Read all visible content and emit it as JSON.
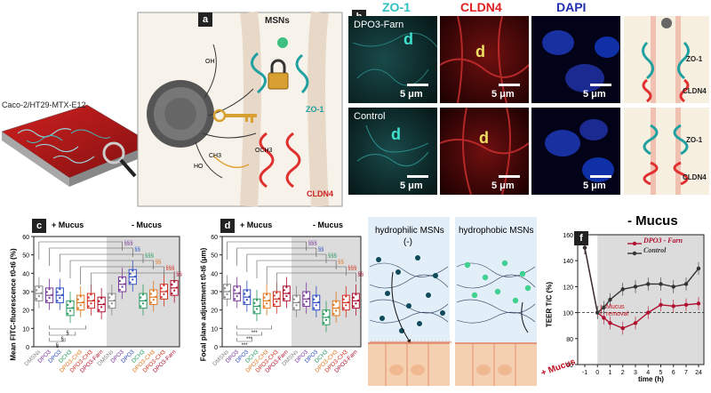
{
  "panel_a": {
    "letter": "a",
    "sample_label": "Caco-2/HT29-MTX-E12",
    "msns_label": "MSNs",
    "zo1_label": "ZO-1",
    "cldn4_label": "CLDN4",
    "chem_labels": [
      "OH",
      "HO",
      "OCH3",
      "CH3"
    ]
  },
  "panel_b": {
    "letter": "b",
    "headers": {
      "zo1": "ZO-1",
      "cldn4": "CLDN4",
      "dapi": "DAPI"
    },
    "row1_label": "DPO3-Farn",
    "row2_label": "Control",
    "scale": "5 μm",
    "d_label": "d",
    "schematic_labels": {
      "zo1": "ZO-1",
      "cldn4": "CLDN4"
    }
  },
  "panel_c": {
    "letter": "c",
    "plus_mucus": "+ Mucus",
    "minus_mucus": "- Mucus",
    "ylabel": "Mean FITC-fluorescence t0-t6 (%)",
    "categories": [
      "DMSNs",
      "DPO3",
      "DPO3",
      "DCH3",
      "DPO3-CH3",
      "DPO3-CH3",
      "DPO3-Farn"
    ],
    "sig_labels": [
      "§§§",
      "§§",
      "§",
      "***",
      "###",
      "**",
      "*"
    ]
  },
  "panel_d": {
    "letter": "d",
    "plus_mucus": "+ Mucus",
    "minus_mucus": "- Mucus",
    "ylabel": "Focal plane adjustment t0-t6 (μm)",
    "sig_labels": [
      "§§§",
      "§§",
      "***",
      "**",
      "*"
    ]
  },
  "panel_e": {
    "letter": "e",
    "left_title": "hydrophilic MSNs",
    "left_sub": "(-)",
    "right_title": "hydrophobic MSNs"
  },
  "panel_f": {
    "letter": "f",
    "title": "- Mucus",
    "legend": [
      "DPO3 - Farn",
      "Control"
    ],
    "ylabel": "TEER T/C (%)",
    "xlabel": "time (h)",
    "annotation": "Mucus removal",
    "plus_mucus": "+ Mucus",
    "colors": {
      "farn": "#b01030",
      "control": "#333333"
    }
  },
  "chart_data": [
    {
      "type": "box",
      "title": "",
      "ylabel": "Mean FITC-fluorescence t0-t6 (%)",
      "ylim": [
        0,
        60
      ],
      "yticks": [
        0,
        10,
        20,
        30,
        40,
        50,
        60
      ],
      "groups": [
        "+ Mucus",
        "- Mucus"
      ],
      "categories": [
        "DMSNs",
        "DPO3",
        "DPO3",
        "DCH3",
        "DPO3-CH3",
        "DPO3-CH3",
        "DPO3-Farn"
      ],
      "colors": [
        "#888888",
        "#7a3a9a",
        "#3050c0",
        "#2a9a60",
        "#e07820",
        "#d03020",
        "#b01030"
      ],
      "series": [
        {
          "name": "+ Mucus",
          "medians": [
            29,
            28,
            28,
            21,
            24,
            25,
            23
          ]
        },
        {
          "name": "- Mucus",
          "medians": [
            25,
            34,
            38,
            25,
            27,
            30,
            32
          ]
        }
      ]
    },
    {
      "type": "box",
      "title": "",
      "ylabel": "Focal plane adjustment t0-t6 (μm)",
      "ylim": [
        0,
        60
      ],
      "yticks": [
        0,
        10,
        20,
        30,
        40,
        50,
        60
      ],
      "groups": [
        "+ Mucus",
        "- Mucus"
      ],
      "categories": [
        "DMSNs",
        "DPO3",
        "DPO3",
        "DCH3",
        "DPO3-CH3",
        "DPO3-CH3",
        "DPO3-Farn"
      ],
      "colors": [
        "#888888",
        "#7a3a9a",
        "#3050c0",
        "#2a9a60",
        "#e07820",
        "#d03020",
        "#b01030"
      ],
      "series": [
        {
          "name": "+ Mucus",
          "medians": [
            30,
            29,
            27,
            22,
            25,
            26,
            29
          ]
        },
        {
          "name": "- Mucus",
          "medians": [
            24,
            26,
            24,
            16,
            21,
            24,
            25
          ]
        }
      ]
    },
    {
      "type": "line",
      "title": "- Mucus",
      "xlabel": "time (h)",
      "ylabel": "TEER T/C (%)",
      "x": [
        -1,
        0,
        0.5,
        1,
        2,
        3,
        4,
        5,
        6,
        7,
        24
      ],
      "xticks": [
        "-1",
        "0",
        "1",
        "2",
        "3",
        "4",
        "5",
        "6",
        "7",
        "24"
      ],
      "ylim": [
        60,
        160
      ],
      "yticks": [
        60,
        80,
        100,
        120,
        140,
        160
      ],
      "series": [
        {
          "name": "DPO3 - Farn",
          "values": [
            150,
            100,
            96,
            92,
            88,
            92,
            100,
            106,
            105,
            106,
            107
          ]
        },
        {
          "name": "Control",
          "values": [
            150,
            100,
            104,
            110,
            118,
            120,
            122,
            122,
            120,
            122,
            134
          ]
        }
      ]
    }
  ]
}
